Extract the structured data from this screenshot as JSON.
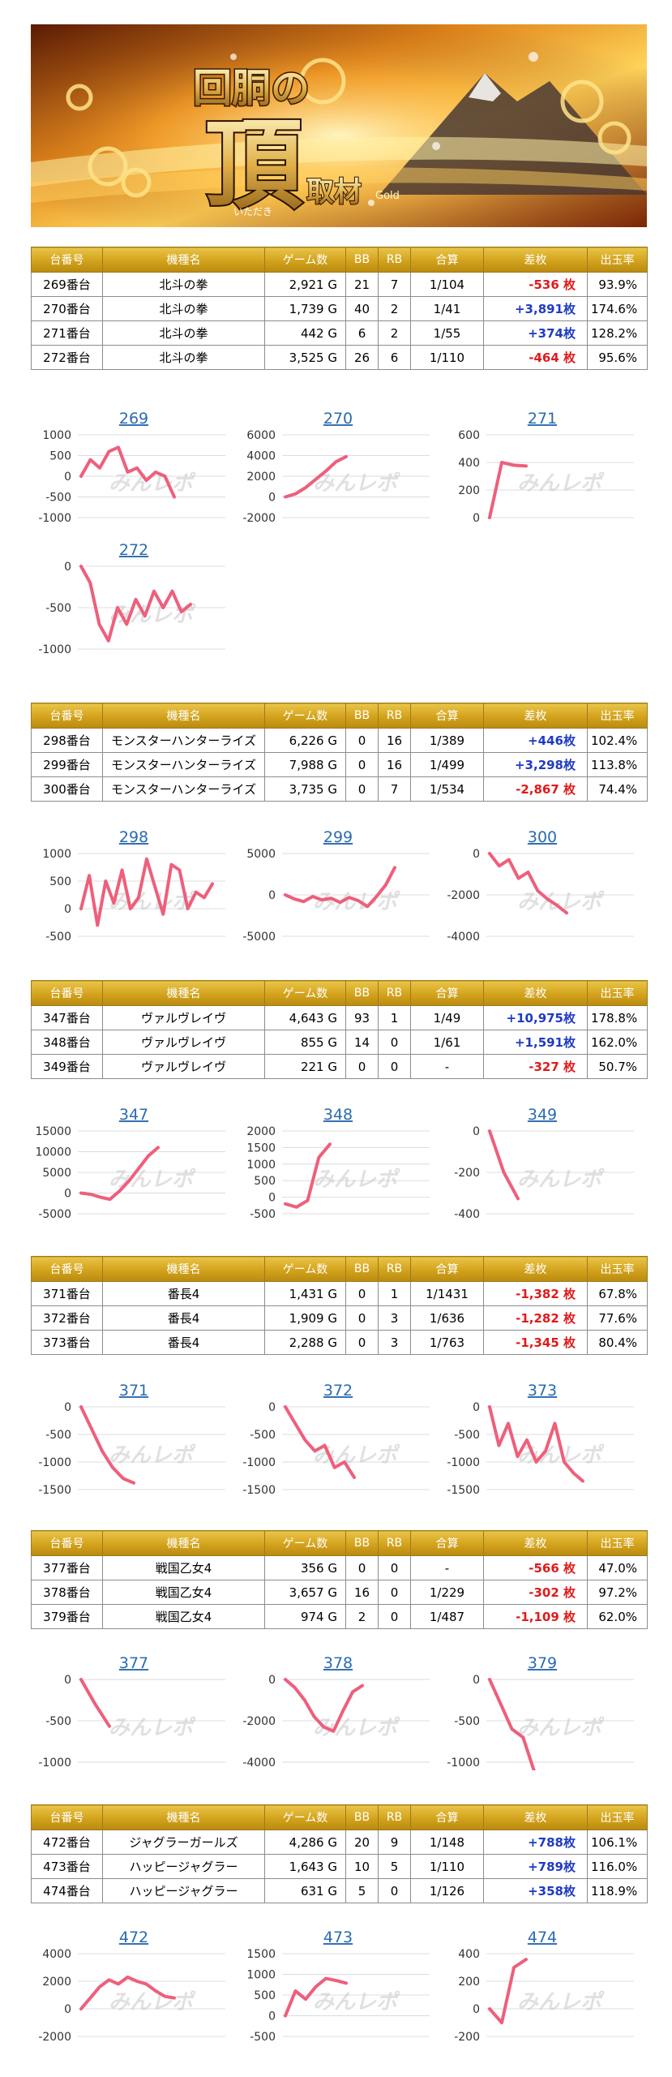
{
  "banner": {
    "title_main": "回胴の",
    "title_big": "頂",
    "title_sub": "取材",
    "ruby": "いただき",
    "tag": "Gold"
  },
  "watermark": "みんレポ",
  "columns": [
    "台番号",
    "機種名",
    "ゲーム数",
    "BB",
    "RB",
    "合算",
    "差枚",
    "出玉率"
  ],
  "groups": [
    {
      "rows": [
        {
          "no": "269番台",
          "machine": "北斗の拳",
          "games": "2,921 G",
          "bb": "21",
          "rb": "7",
          "combined": "1/104",
          "diff": "-536 枚",
          "sign": "neg",
          "rate": "93.9%"
        },
        {
          "no": "270番台",
          "machine": "北斗の拳",
          "games": "1,739 G",
          "bb": "40",
          "rb": "2",
          "combined": "1/41",
          "diff": "+3,891枚",
          "sign": "pos",
          "rate": "174.6%"
        },
        {
          "no": "271番台",
          "machine": "北斗の拳",
          "games": "442 G",
          "bb": "6",
          "rb": "2",
          "combined": "1/55",
          "diff": "+374枚",
          "sign": "pos",
          "rate": "128.2%"
        },
        {
          "no": "272番台",
          "machine": "北斗の拳",
          "games": "3,525 G",
          "bb": "26",
          "rb": "6",
          "combined": "1/110",
          "diff": "-464 枚",
          "sign": "neg",
          "rate": "95.6%"
        }
      ]
    },
    {
      "rows": [
        {
          "no": "298番台",
          "machine": "モンスターハンターライズ",
          "games": "6,226 G",
          "bb": "0",
          "rb": "16",
          "combined": "1/389",
          "diff": "+446枚",
          "sign": "pos",
          "rate": "102.4%"
        },
        {
          "no": "299番台",
          "machine": "モンスターハンターライズ",
          "games": "7,988 G",
          "bb": "0",
          "rb": "16",
          "combined": "1/499",
          "diff": "+3,298枚",
          "sign": "pos",
          "rate": "113.8%"
        },
        {
          "no": "300番台",
          "machine": "モンスターハンターライズ",
          "games": "3,735 G",
          "bb": "0",
          "rb": "7",
          "combined": "1/534",
          "diff": "-2,867 枚",
          "sign": "neg",
          "rate": "74.4%"
        }
      ]
    },
    {
      "rows": [
        {
          "no": "347番台",
          "machine": "ヴァルヴレイヴ",
          "games": "4,643 G",
          "bb": "93",
          "rb": "1",
          "combined": "1/49",
          "diff": "+10,975枚",
          "sign": "pos",
          "rate": "178.8%"
        },
        {
          "no": "348番台",
          "machine": "ヴァルヴレイヴ",
          "games": "855 G",
          "bb": "14",
          "rb": "0",
          "combined": "1/61",
          "diff": "+1,591枚",
          "sign": "pos",
          "rate": "162.0%"
        },
        {
          "no": "349番台",
          "machine": "ヴァルヴレイヴ",
          "games": "221 G",
          "bb": "0",
          "rb": "0",
          "combined": "-",
          "diff": "-327 枚",
          "sign": "neg",
          "rate": "50.7%"
        }
      ]
    },
    {
      "rows": [
        {
          "no": "371番台",
          "machine": "番長4",
          "games": "1,431 G",
          "bb": "0",
          "rb": "1",
          "combined": "1/1431",
          "diff": "-1,382 枚",
          "sign": "neg",
          "rate": "67.8%"
        },
        {
          "no": "372番台",
          "machine": "番長4",
          "games": "1,909 G",
          "bb": "0",
          "rb": "3",
          "combined": "1/636",
          "diff": "-1,282 枚",
          "sign": "neg",
          "rate": "77.6%"
        },
        {
          "no": "373番台",
          "machine": "番長4",
          "games": "2,288 G",
          "bb": "0",
          "rb": "3",
          "combined": "1/763",
          "diff": "-1,345 枚",
          "sign": "neg",
          "rate": "80.4%"
        }
      ]
    },
    {
      "rows": [
        {
          "no": "377番台",
          "machine": "戦国乙女4",
          "games": "356 G",
          "bb": "0",
          "rb": "0",
          "combined": "-",
          "diff": "-566 枚",
          "sign": "neg",
          "rate": "47.0%"
        },
        {
          "no": "378番台",
          "machine": "戦国乙女4",
          "games": "3,657 G",
          "bb": "16",
          "rb": "0",
          "combined": "1/229",
          "diff": "-302 枚",
          "sign": "neg",
          "rate": "97.2%"
        },
        {
          "no": "379番台",
          "machine": "戦国乙女4",
          "games": "974 G",
          "bb": "2",
          "rb": "0",
          "combined": "1/487",
          "diff": "-1,109 枚",
          "sign": "neg",
          "rate": "62.0%"
        }
      ]
    },
    {
      "rows": [
        {
          "no": "472番台",
          "machine": "ジャグラーガールズ",
          "games": "4,286 G",
          "bb": "20",
          "rb": "9",
          "combined": "1/148",
          "diff": "+788枚",
          "sign": "pos",
          "rate": "106.1%"
        },
        {
          "no": "473番台",
          "machine": "ハッピージャグラー",
          "games": "1,643 G",
          "bb": "10",
          "rb": "5",
          "combined": "1/110",
          "diff": "+789枚",
          "sign": "pos",
          "rate": "116.0%"
        },
        {
          "no": "474番台",
          "machine": "ハッピージャグラー",
          "games": "631 G",
          "bb": "5",
          "rb": "0",
          "combined": "1/126",
          "diff": "+358枚",
          "sign": "pos",
          "rate": "118.9%"
        }
      ]
    }
  ],
  "colors": {
    "line": "#ee5f7b",
    "positive": "#1f3bc2",
    "negative": "#e11a1a",
    "title": "#2a6bb0",
    "header_gold": "#d3a21c"
  },
  "chart_data": [
    {
      "type": "line",
      "title": "269",
      "yticks": [
        1000,
        500,
        0,
        -500,
        -1000
      ],
      "ylim": [
        -1000,
        1000
      ],
      "x": [
        0,
        1,
        2,
        3,
        4,
        5,
        6,
        7,
        8,
        9,
        10
      ],
      "y": [
        0,
        400,
        200,
        600,
        700,
        100,
        200,
        -100,
        100,
        0,
        -500
      ]
    },
    {
      "type": "line",
      "title": "270",
      "yticks": [
        6000,
        4000,
        2000,
        0,
        -2000
      ],
      "ylim": [
        -2000,
        6000
      ],
      "x": [
        0,
        1,
        2,
        3,
        4,
        5,
        6
      ],
      "y": [
        0,
        300,
        900,
        1700,
        2500,
        3400,
        3900
      ]
    },
    {
      "type": "line",
      "title": "271",
      "yticks": [
        600,
        400,
        200,
        0
      ],
      "ylim": [
        0,
        600
      ],
      "x": [
        0,
        1,
        2,
        3
      ],
      "y": [
        0,
        400,
        380,
        374
      ]
    },
    {
      "type": "line",
      "title": "272",
      "yticks": [
        0,
        -500,
        -1000
      ],
      "ylim": [
        -1000,
        0
      ],
      "x": [
        0,
        1,
        2,
        3,
        4,
        5,
        6,
        7,
        8,
        9,
        10,
        11,
        12
      ],
      "y": [
        0,
        -200,
        -700,
        -900,
        -500,
        -700,
        -400,
        -600,
        -300,
        -500,
        -300,
        -550,
        -460
      ]
    },
    {
      "type": "line",
      "title": "298",
      "yticks": [
        1000,
        500,
        0,
        -500
      ],
      "ylim": [
        -500,
        1000
      ],
      "x": [
        0,
        1,
        2,
        3,
        4,
        5,
        6,
        7,
        8,
        9,
        10,
        11,
        12,
        13,
        14,
        15,
        16
      ],
      "y": [
        0,
        600,
        -300,
        500,
        100,
        700,
        0,
        200,
        900,
        400,
        -100,
        800,
        700,
        0,
        300,
        200,
        450
      ]
    },
    {
      "type": "line",
      "title": "299",
      "yticks": [
        5000,
        0,
        -5000
      ],
      "ylim": [
        -5000,
        5000
      ],
      "x": [
        0,
        1,
        2,
        3,
        4,
        5,
        6,
        7,
        8,
        9,
        10,
        11,
        12
      ],
      "y": [
        0,
        -500,
        -800,
        -200,
        -600,
        -400,
        -900,
        -300,
        -700,
        -1400,
        -200,
        1200,
        3300
      ]
    },
    {
      "type": "line",
      "title": "300",
      "yticks": [
        0,
        -2000,
        -4000
      ],
      "ylim": [
        -4000,
        0
      ],
      "x": [
        0,
        1,
        2,
        3,
        4,
        5,
        6,
        7,
        8
      ],
      "y": [
        0,
        -600,
        -300,
        -1200,
        -900,
        -1800,
        -2200,
        -2500,
        -2870
      ]
    },
    {
      "type": "line",
      "title": "347",
      "yticks": [
        15000,
        10000,
        5000,
        0,
        -5000
      ],
      "ylim": [
        -5000,
        15000
      ],
      "x": [
        0,
        1,
        2,
        3,
        4,
        5,
        6,
        7,
        8
      ],
      "y": [
        0,
        -300,
        -1000,
        -1500,
        500,
        3000,
        6000,
        9000,
        11000
      ]
    },
    {
      "type": "line",
      "title": "348",
      "yticks": [
        2000,
        1500,
        1000,
        500,
        0,
        -500
      ],
      "ylim": [
        -500,
        2000
      ],
      "x": [
        0,
        1,
        2,
        3,
        4
      ],
      "y": [
        -200,
        -300,
        -100,
        1200,
        1600
      ]
    },
    {
      "type": "line",
      "title": "349",
      "yticks": [
        0,
        -200,
        -400
      ],
      "ylim": [
        -400,
        0
      ],
      "x": [
        0,
        1,
        2
      ],
      "y": [
        0,
        -200,
        -327
      ]
    },
    {
      "type": "line",
      "title": "371",
      "yticks": [
        0,
        -500,
        -1000,
        -1500
      ],
      "ylim": [
        -1500,
        0
      ],
      "x": [
        0,
        1,
        2,
        3,
        4,
        5
      ],
      "y": [
        0,
        -400,
        -800,
        -1100,
        -1300,
        -1380
      ]
    },
    {
      "type": "line",
      "title": "372",
      "yticks": [
        0,
        -500,
        -1000,
        -1500
      ],
      "ylim": [
        -1500,
        0
      ],
      "x": [
        0,
        1,
        2,
        3,
        4,
        5,
        6,
        7
      ],
      "y": [
        0,
        -300,
        -600,
        -800,
        -700,
        -1100,
        -1000,
        -1280
      ]
    },
    {
      "type": "line",
      "title": "373",
      "yticks": [
        0,
        -500,
        -1000,
        -1500
      ],
      "ylim": [
        -1500,
        0
      ],
      "x": [
        0,
        1,
        2,
        3,
        4,
        5,
        6,
        7,
        8,
        9,
        10
      ],
      "y": [
        0,
        -700,
        -300,
        -900,
        -600,
        -1000,
        -800,
        -300,
        -1000,
        -1200,
        -1345
      ]
    },
    {
      "type": "line",
      "title": "377",
      "yticks": [
        0,
        -500,
        -1000
      ],
      "ylim": [
        -1000,
        0
      ],
      "x": [
        0,
        1,
        2
      ],
      "y": [
        0,
        -300,
        -566
      ]
    },
    {
      "type": "line",
      "title": "378",
      "yticks": [
        0,
        -2000,
        -4000
      ],
      "ylim": [
        -4000,
        0
      ],
      "x": [
        0,
        1,
        2,
        3,
        4,
        5,
        6,
        7,
        8
      ],
      "y": [
        0,
        -400,
        -1000,
        -1800,
        -2300,
        -2500,
        -1500,
        -600,
        -300
      ]
    },
    {
      "type": "line",
      "title": "379",
      "yticks": [
        0,
        -500,
        -1000
      ],
      "ylim": [
        -1000,
        0
      ],
      "x": [
        0,
        1,
        2,
        3,
        4
      ],
      "y": [
        0,
        -300,
        -600,
        -700,
        -1109
      ]
    },
    {
      "type": "line",
      "title": "472",
      "yticks": [
        4000,
        2000,
        0,
        -2000
      ],
      "ylim": [
        -2000,
        4000
      ],
      "x": [
        0,
        1,
        2,
        3,
        4,
        5,
        6,
        7,
        8,
        9,
        10
      ],
      "y": [
        0,
        800,
        1600,
        2100,
        1800,
        2300,
        2000,
        1800,
        1300,
        900,
        788
      ]
    },
    {
      "type": "line",
      "title": "473",
      "yticks": [
        1500,
        1000,
        500,
        0,
        -500
      ],
      "ylim": [
        -500,
        1500
      ],
      "x": [
        0,
        1,
        2,
        3,
        4,
        5,
        6
      ],
      "y": [
        0,
        600,
        400,
        700,
        900,
        850,
        789
      ]
    },
    {
      "type": "line",
      "title": "474",
      "yticks": [
        400,
        200,
        0,
        -200
      ],
      "ylim": [
        -200,
        400
      ],
      "x": [
        0,
        1,
        2,
        3
      ],
      "y": [
        0,
        -100,
        300,
        358
      ]
    }
  ]
}
